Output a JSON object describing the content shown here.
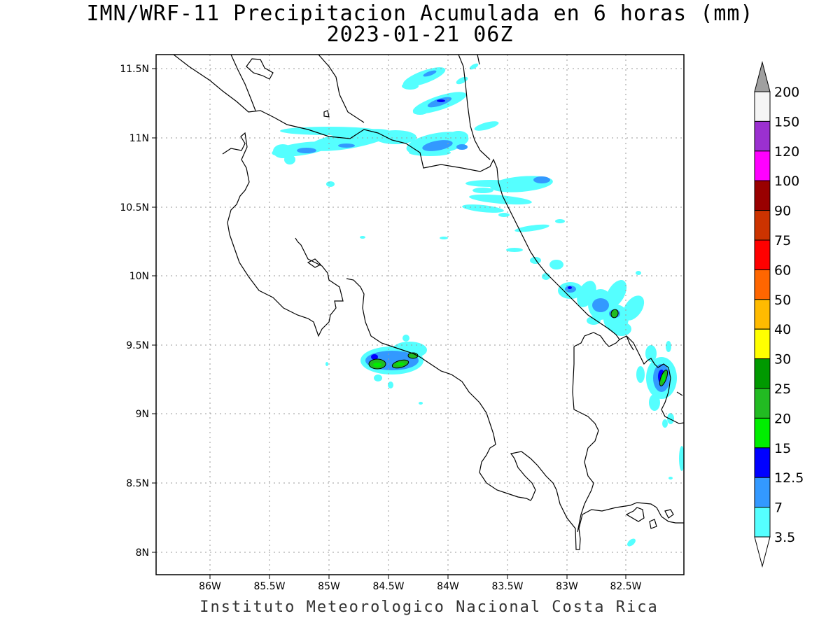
{
  "title": {
    "line1": "IMN/WRF-11 Precipitacion Acumulada en 6 horas (mm)",
    "line2": "2023-01-21 06Z"
  },
  "footer": "Instituto Meteorologico Nacional Costa Rica",
  "map": {
    "lon_range": [
      -86.45,
      -82.05
    ],
    "lat_range": [
      7.85,
      11.6
    ],
    "grid": true,
    "x_ticks": [
      "86W",
      "85.5W",
      "85W",
      "84.5W",
      "84W",
      "83.5W",
      "83W",
      "82.5W"
    ],
    "y_ticks": [
      "11.5N",
      "11N",
      "10.5N",
      "10N",
      "9.5N",
      "9N",
      "8.5N",
      "8N"
    ]
  },
  "colorbar": {
    "labels": [
      "200",
      "150",
      "120",
      "100",
      "90",
      "75",
      "60",
      "50",
      "40",
      "30",
      "25",
      "20",
      "15",
      "12.5",
      "7",
      "3.5"
    ],
    "colors": [
      "#f5f5f5",
      "#9b30d0",
      "#ff00ff",
      "#990000",
      "#cc3300",
      "#ff0000",
      "#ff6600",
      "#ffbb00",
      "#ffff00",
      "#009900",
      "#22bb22",
      "#00ee00",
      "#0000ff",
      "#3399ff",
      "#55ffff"
    ],
    "top_arrow_color": "#a0a0a0",
    "bottom_arrow_color": "#ffffff"
  }
}
